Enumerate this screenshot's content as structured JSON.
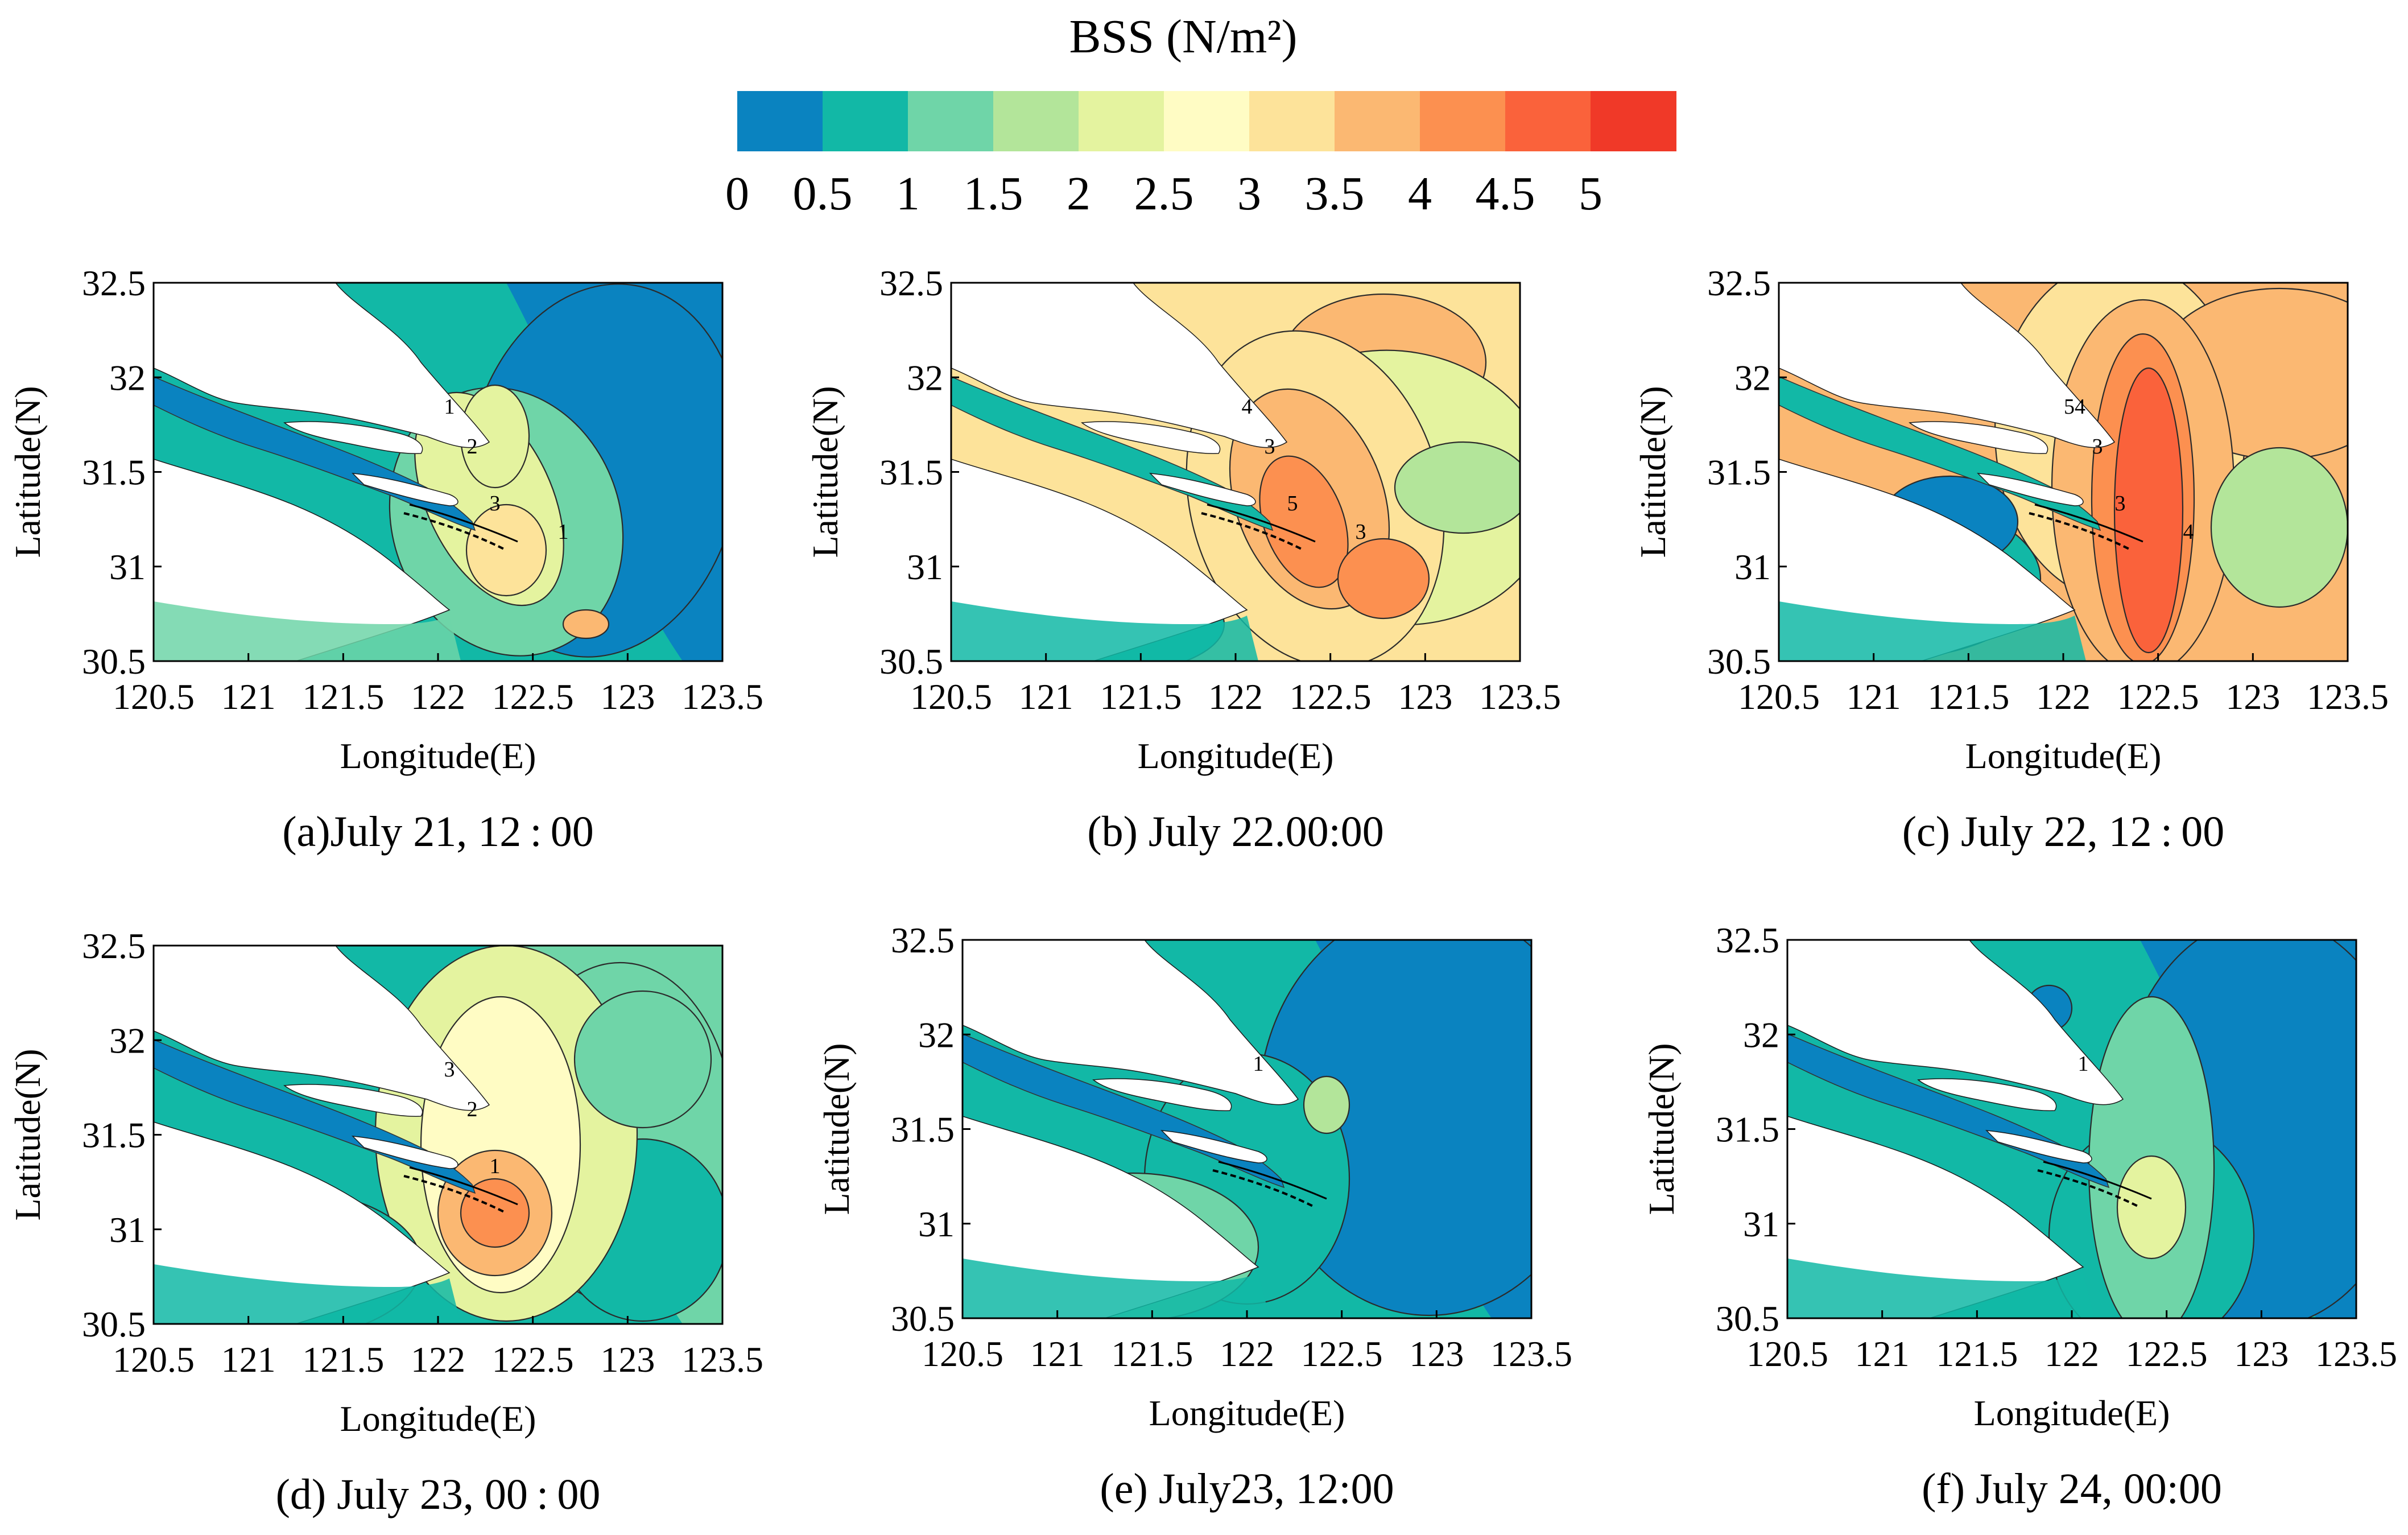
{
  "chart_data": {
    "type": "heatmap",
    "title": "BSS (N/m²)",
    "colorbar": {
      "ticks": [
        "0",
        "0.5",
        "1",
        "1.5",
        "2",
        "2.5",
        "3",
        "3.5",
        "4",
        "4.5",
        "5"
      ],
      "levels": [
        0,
        0.5,
        1,
        1.5,
        2,
        2.5,
        3,
        3.5,
        4,
        4.5,
        5
      ],
      "colors": [
        "#0a83c0",
        "#12b8a6",
        "#6fd5a8",
        "#b3e59a",
        "#e4f39f",
        "#fffcc4",
        "#fde39a",
        "#fbb872",
        "#fc9050",
        "#fa623b",
        "#f03928"
      ]
    },
    "xlabel": "Longitude(E)",
    "ylabel": "Latitude(N)",
    "xlim": [
      120.5,
      123.5
    ],
    "ylim": [
      30.5,
      32.5
    ],
    "xticks": [
      "120.5",
      "121",
      "121.5",
      "122",
      "122.5",
      "123",
      "123.5"
    ],
    "yticks": [
      "30.5",
      "31",
      "31.5",
      "32",
      "32.5"
    ],
    "panels": [
      {
        "caption": "(a)July 21, 12 : 00",
        "background_level": 0.75,
        "offshore_level": 0.25,
        "contour_labels": [
          "1",
          "2",
          "3",
          "1"
        ]
      },
      {
        "caption": "(b) July 22.00:00",
        "background_level": 3.25,
        "offshore_level": 3.25,
        "contour_labels": [
          "4",
          "3",
          "5",
          "3"
        ]
      },
      {
        "caption": "(c) July 22, 12 : 00",
        "background_level": 3.75,
        "offshore_level": 3.75,
        "contour_labels": [
          "54",
          "3",
          "3",
          "4"
        ]
      },
      {
        "caption": "(d) July 23, 00 : 00",
        "background_level": 0.75,
        "offshore_level": 1.25,
        "contour_labels": [
          "3",
          "2",
          "1"
        ]
      },
      {
        "caption": "(e) July23, 12:00",
        "background_level": 0.75,
        "offshore_level": 0.25,
        "contour_labels": [
          "1"
        ]
      },
      {
        "caption": "(f) July 24, 00:00",
        "background_level": 0.75,
        "offshore_level": 0.25,
        "contour_labels": [
          "1"
        ]
      }
    ]
  }
}
